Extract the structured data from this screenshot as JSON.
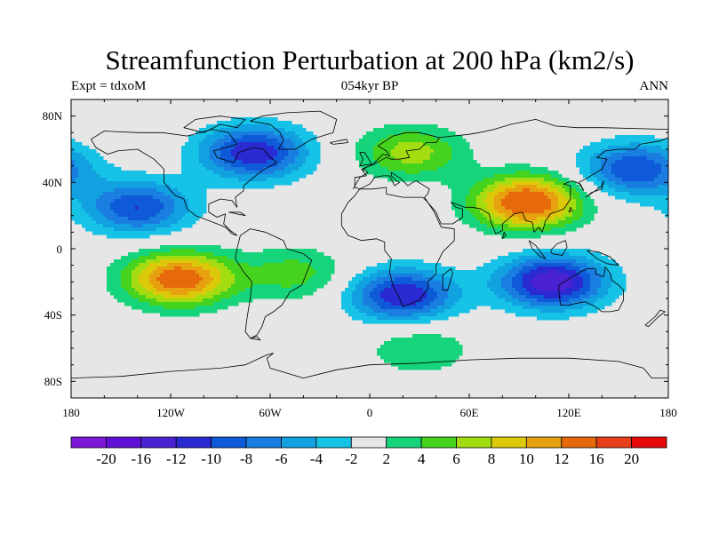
{
  "figure": {
    "title": "Streamfunction Perturbation at 200 hPa (km2/s)",
    "left_string": "Expt = tdxoM",
    "center_string": "054kyr BP",
    "right_string": "ANN"
  },
  "map": {
    "projection": "cylindrical-equidistant",
    "lon_range": [
      -180,
      180
    ],
    "lat_range": [
      -90,
      90
    ],
    "lat_ticks": [
      "80N",
      "40N",
      "0",
      "40S",
      "80S"
    ],
    "lon_ticks": [
      "180",
      "120W",
      "60W",
      "0",
      "60E",
      "120E",
      "180"
    ],
    "missing_color": "#e6e6e6",
    "coastlines": "black-outline"
  },
  "colorbar": {
    "labels": [
      "-20",
      "-16",
      "-12",
      "-10",
      "-8",
      "-6",
      "-4",
      "-2",
      "2",
      "4",
      "6",
      "8",
      "10",
      "12",
      "16",
      "20"
    ],
    "colors": [
      "#7d16d6",
      "#6010d6",
      "#4a22d2",
      "#2a2ad2",
      "#0e5ad8",
      "#1a7ee0",
      "#11a0e0",
      "#16c2e6",
      "#e6e6e6",
      "#16d47c",
      "#46d31e",
      "#a4dc12",
      "#dcca0a",
      "#e6a010",
      "#e6690c",
      "#e6401a",
      "#e40a0a"
    ]
  },
  "chart_data": {
    "type": "heatmap",
    "variable": "Streamfunction Perturbation at 200 hPa",
    "units": "km2/s",
    "levels": [
      -20,
      -16,
      -12,
      -10,
      -8,
      -6,
      -4,
      -2,
      2,
      4,
      6,
      8,
      10,
      12,
      16,
      20
    ],
    "field_features": [
      {
        "lon": -140,
        "lat": 25,
        "value": -10
      },
      {
        "lon": -115,
        "lat": -18,
        "value": 14
      },
      {
        "lon": 95,
        "lat": 28,
        "value": 15
      },
      {
        "lon": 25,
        "lat": 58,
        "value": 7
      },
      {
        "lon": -70,
        "lat": 58,
        "value": -12
      },
      {
        "lon": 20,
        "lat": -28,
        "value": -12
      },
      {
        "lon": 110,
        "lat": -20,
        "value": -14
      },
      {
        "lon": 160,
        "lat": 48,
        "value": -10
      },
      {
        "lon": 30,
        "lat": -60,
        "value": 4
      },
      {
        "lon": -45,
        "lat": -15,
        "value": 5
      }
    ]
  }
}
